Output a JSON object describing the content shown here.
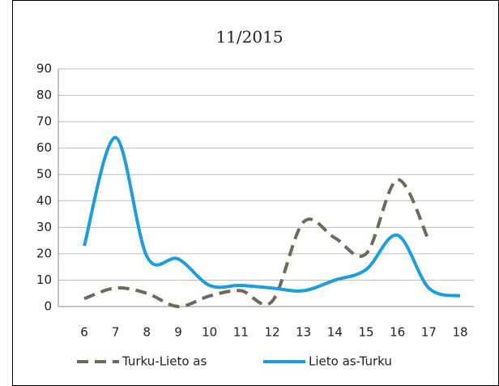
{
  "chart_data": {
    "type": "line",
    "title": "11/2015",
    "categories": [
      6,
      7,
      8,
      9,
      10,
      11,
      12,
      13,
      14,
      15,
      16,
      17,
      18
    ],
    "series": [
      {
        "name": "Turku-Lieto as",
        "color": "#6b6b58",
        "dashed": true,
        "values": [
          3,
          7,
          5,
          0,
          4,
          6,
          2,
          32,
          26,
          20,
          48,
          25,
          null
        ]
      },
      {
        "name": "Lieto as-Turku",
        "color": "#1b9ee0",
        "dashed": false,
        "values": [
          23,
          64,
          19,
          18,
          8,
          8,
          7,
          6,
          10,
          14,
          27,
          7,
          4
        ]
      }
    ],
    "ylim": [
      0,
      90
    ],
    "yticks": [
      0,
      10,
      20,
      30,
      40,
      50,
      60,
      70,
      80,
      90
    ],
    "grid": true,
    "legend": "bottom",
    "smooth": true
  }
}
